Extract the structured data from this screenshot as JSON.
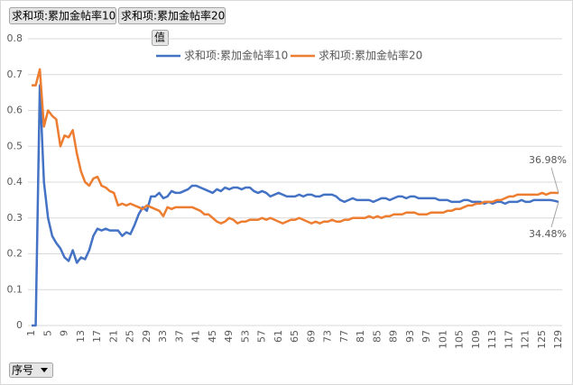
{
  "buttons": {
    "field1": "求和项:累加金帖率10",
    "field2": "求和项:累加金帖率20",
    "values": "值",
    "axis": "序号"
  },
  "chart_data": {
    "type": "line",
    "categories": [
      1,
      null,
      null,
      null,
      5,
      null,
      null,
      null,
      9,
      null,
      null,
      null,
      13,
      null,
      null,
      null,
      17,
      null,
      null,
      null,
      21,
      null,
      null,
      null,
      25,
      null,
      null,
      null,
      29,
      null,
      null,
      null,
      33,
      null,
      null,
      null,
      37,
      null,
      null,
      null,
      41,
      null,
      null,
      null,
      45,
      null,
      null,
      null,
      49,
      null,
      null,
      null,
      53,
      null,
      null,
      null,
      57,
      null,
      null,
      null,
      61,
      null,
      null,
      null,
      65,
      null,
      null,
      null,
      69,
      null,
      null,
      null,
      73,
      null,
      null,
      null,
      77,
      null,
      null,
      null,
      81,
      null,
      null,
      null,
      85,
      null,
      null,
      null,
      89,
      null,
      null,
      null,
      93,
      null,
      null,
      null,
      97,
      null,
      null,
      null,
      101,
      null,
      null,
      null,
      105,
      null,
      null,
      null,
      109,
      null,
      null,
      null,
      113,
      null,
      null,
      null,
      117,
      null,
      null,
      null,
      121,
      null,
      null,
      null,
      125,
      null,
      null,
      null,
      129
    ],
    "series": [
      {
        "name": "求和项:累加金帖率10",
        "color": "#4472c4",
        "values": [
          0,
          0,
          0.67,
          0.4,
          0.3,
          0.25,
          0.23,
          0.215,
          0.19,
          0.18,
          0.21,
          0.175,
          0.19,
          0.185,
          0.21,
          0.25,
          0.27,
          0.265,
          0.27,
          0.265,
          0.265,
          0.265,
          0.25,
          0.26,
          0.255,
          0.28,
          0.31,
          0.33,
          0.32,
          0.36,
          0.36,
          0.37,
          0.355,
          0.36,
          0.375,
          0.37,
          0.37,
          0.375,
          0.38,
          0.39,
          0.39,
          0.385,
          0.38,
          0.375,
          0.37,
          0.38,
          0.375,
          0.385,
          0.38,
          0.385,
          0.385,
          0.38,
          0.385,
          0.385,
          0.375,
          0.37,
          0.375,
          0.37,
          0.36,
          0.365,
          0.37,
          0.365,
          0.36,
          0.36,
          0.36,
          0.365,
          0.36,
          0.365,
          0.365,
          0.36,
          0.36,
          0.365,
          0.365,
          0.365,
          0.36,
          0.35,
          0.345,
          0.35,
          0.355,
          0.35,
          0.35,
          0.35,
          0.35,
          0.345,
          0.35,
          0.355,
          0.355,
          0.35,
          0.355,
          0.36,
          0.36,
          0.355,
          0.36,
          0.36,
          0.355,
          0.355,
          0.355,
          0.355,
          0.355,
          0.35,
          0.35,
          0.35,
          0.345,
          0.345,
          0.345,
          0.35,
          0.35,
          0.345,
          0.345,
          0.345,
          0.34,
          0.345,
          0.34,
          0.345,
          0.345,
          0.34,
          0.345,
          0.345,
          0.345,
          0.35,
          0.345,
          0.345,
          0.35,
          0.35,
          0.35,
          0.35,
          0.35,
          0.348,
          0.3448
        ],
        "value_labels": [
          null,
          null,
          null,
          null,
          null,
          null,
          null,
          null,
          null,
          null,
          null,
          null,
          null,
          null,
          null,
          null,
          null,
          null,
          null,
          null,
          null,
          null,
          null,
          null,
          null,
          null,
          null,
          null,
          null,
          null,
          null,
          null,
          null,
          null,
          null,
          null,
          null,
          null,
          null,
          null,
          null,
          null,
          null,
          null,
          null,
          null,
          null,
          null,
          null,
          null,
          null,
          null,
          null,
          null,
          null,
          null,
          null,
          null,
          null,
          null,
          null,
          null,
          null,
          null,
          null,
          null,
          null,
          null,
          null,
          null,
          null,
          null,
          null,
          null,
          null,
          null,
          null,
          null,
          null,
          null,
          null,
          null,
          null,
          null,
          null,
          null,
          null,
          null,
          null,
          null,
          null,
          null,
          null,
          null,
          null,
          null,
          null,
          null,
          null,
          null,
          null,
          null,
          null,
          null,
          null,
          null,
          null,
          null,
          null,
          null,
          null,
          null,
          null,
          null,
          null,
          null,
          null,
          null,
          null,
          null,
          null,
          null,
          null,
          null,
          null,
          null,
          null,
          null,
          "34.48%"
        ]
      },
      {
        "name": "求和项:累加金帖率20",
        "color": "#ed7d31",
        "values": [
          0.67,
          0.67,
          0.715,
          0.555,
          0.6,
          0.585,
          0.575,
          0.5,
          0.53,
          0.525,
          0.545,
          0.48,
          0.43,
          0.4,
          0.39,
          0.41,
          0.415,
          0.39,
          0.385,
          0.375,
          0.37,
          0.335,
          0.34,
          0.335,
          0.34,
          0.335,
          0.33,
          0.325,
          0.335,
          0.33,
          0.325,
          0.32,
          0.305,
          0.33,
          0.325,
          0.33,
          0.33,
          0.33,
          0.33,
          0.33,
          0.325,
          0.32,
          0.31,
          0.31,
          0.3,
          0.29,
          0.285,
          0.29,
          0.3,
          0.295,
          0.285,
          0.29,
          0.29,
          0.295,
          0.295,
          0.295,
          0.3,
          0.295,
          0.3,
          0.295,
          0.29,
          0.285,
          0.29,
          0.295,
          0.295,
          0.3,
          0.295,
          0.29,
          0.285,
          0.29,
          0.285,
          0.29,
          0.29,
          0.295,
          0.29,
          0.29,
          0.295,
          0.295,
          0.3,
          0.3,
          0.3,
          0.3,
          0.305,
          0.3,
          0.305,
          0.3,
          0.305,
          0.305,
          0.31,
          0.31,
          0.31,
          0.315,
          0.315,
          0.315,
          0.31,
          0.31,
          0.31,
          0.315,
          0.315,
          0.315,
          0.315,
          0.32,
          0.32,
          0.325,
          0.325,
          0.33,
          0.335,
          0.335,
          0.34,
          0.34,
          0.345,
          0.345,
          0.345,
          0.35,
          0.35,
          0.355,
          0.36,
          0.36,
          0.365,
          0.365,
          0.365,
          0.365,
          0.365,
          0.365,
          0.37,
          0.365,
          0.37,
          0.37,
          0.3698
        ],
        "value_labels": [
          null,
          null,
          null,
          null,
          null,
          null,
          null,
          null,
          null,
          null,
          null,
          null,
          null,
          null,
          null,
          null,
          null,
          null,
          null,
          null,
          null,
          null,
          null,
          null,
          null,
          null,
          null,
          null,
          null,
          null,
          null,
          null,
          null,
          null,
          null,
          null,
          null,
          null,
          null,
          null,
          null,
          null,
          null,
          null,
          null,
          null,
          null,
          null,
          null,
          null,
          null,
          null,
          null,
          null,
          null,
          null,
          null,
          null,
          null,
          null,
          null,
          null,
          null,
          null,
          null,
          null,
          null,
          null,
          null,
          null,
          null,
          null,
          null,
          null,
          null,
          null,
          null,
          null,
          null,
          null,
          null,
          null,
          null,
          null,
          null,
          null,
          null,
          null,
          null,
          null,
          null,
          null,
          null,
          null,
          null,
          null,
          null,
          null,
          null,
          null,
          null,
          null,
          null,
          null,
          null,
          null,
          null,
          null,
          null,
          null,
          null,
          null,
          null,
          null,
          null,
          null,
          null,
          null,
          null,
          null,
          null,
          null,
          null,
          null,
          null,
          null,
          null,
          null,
          "36.98%"
        ]
      }
    ],
    "ylim": [
      0,
      0.8
    ],
    "yticks": [
      0,
      0.1,
      0.2,
      0.3,
      0.4,
      0.5,
      0.6,
      0.7,
      0.8
    ],
    "grid": true,
    "legend": "top"
  }
}
